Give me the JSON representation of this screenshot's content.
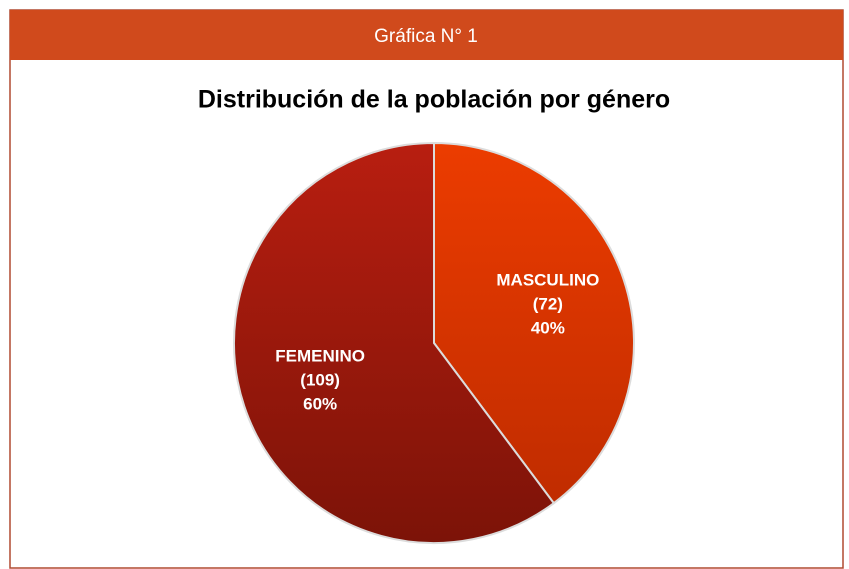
{
  "header": {
    "title": "Gráfica N° 1"
  },
  "chart_data": {
    "type": "pie",
    "title": "Distribución de la población por género",
    "categories": [
      "MASCULINO",
      "FEMENINO"
    ],
    "values": [
      72,
      109
    ],
    "value_labels": [
      "(72)",
      "(109)"
    ],
    "percent_labels": [
      "40%",
      "60%"
    ],
    "colors": [
      "#e03600",
      "#9c1a0e"
    ]
  }
}
